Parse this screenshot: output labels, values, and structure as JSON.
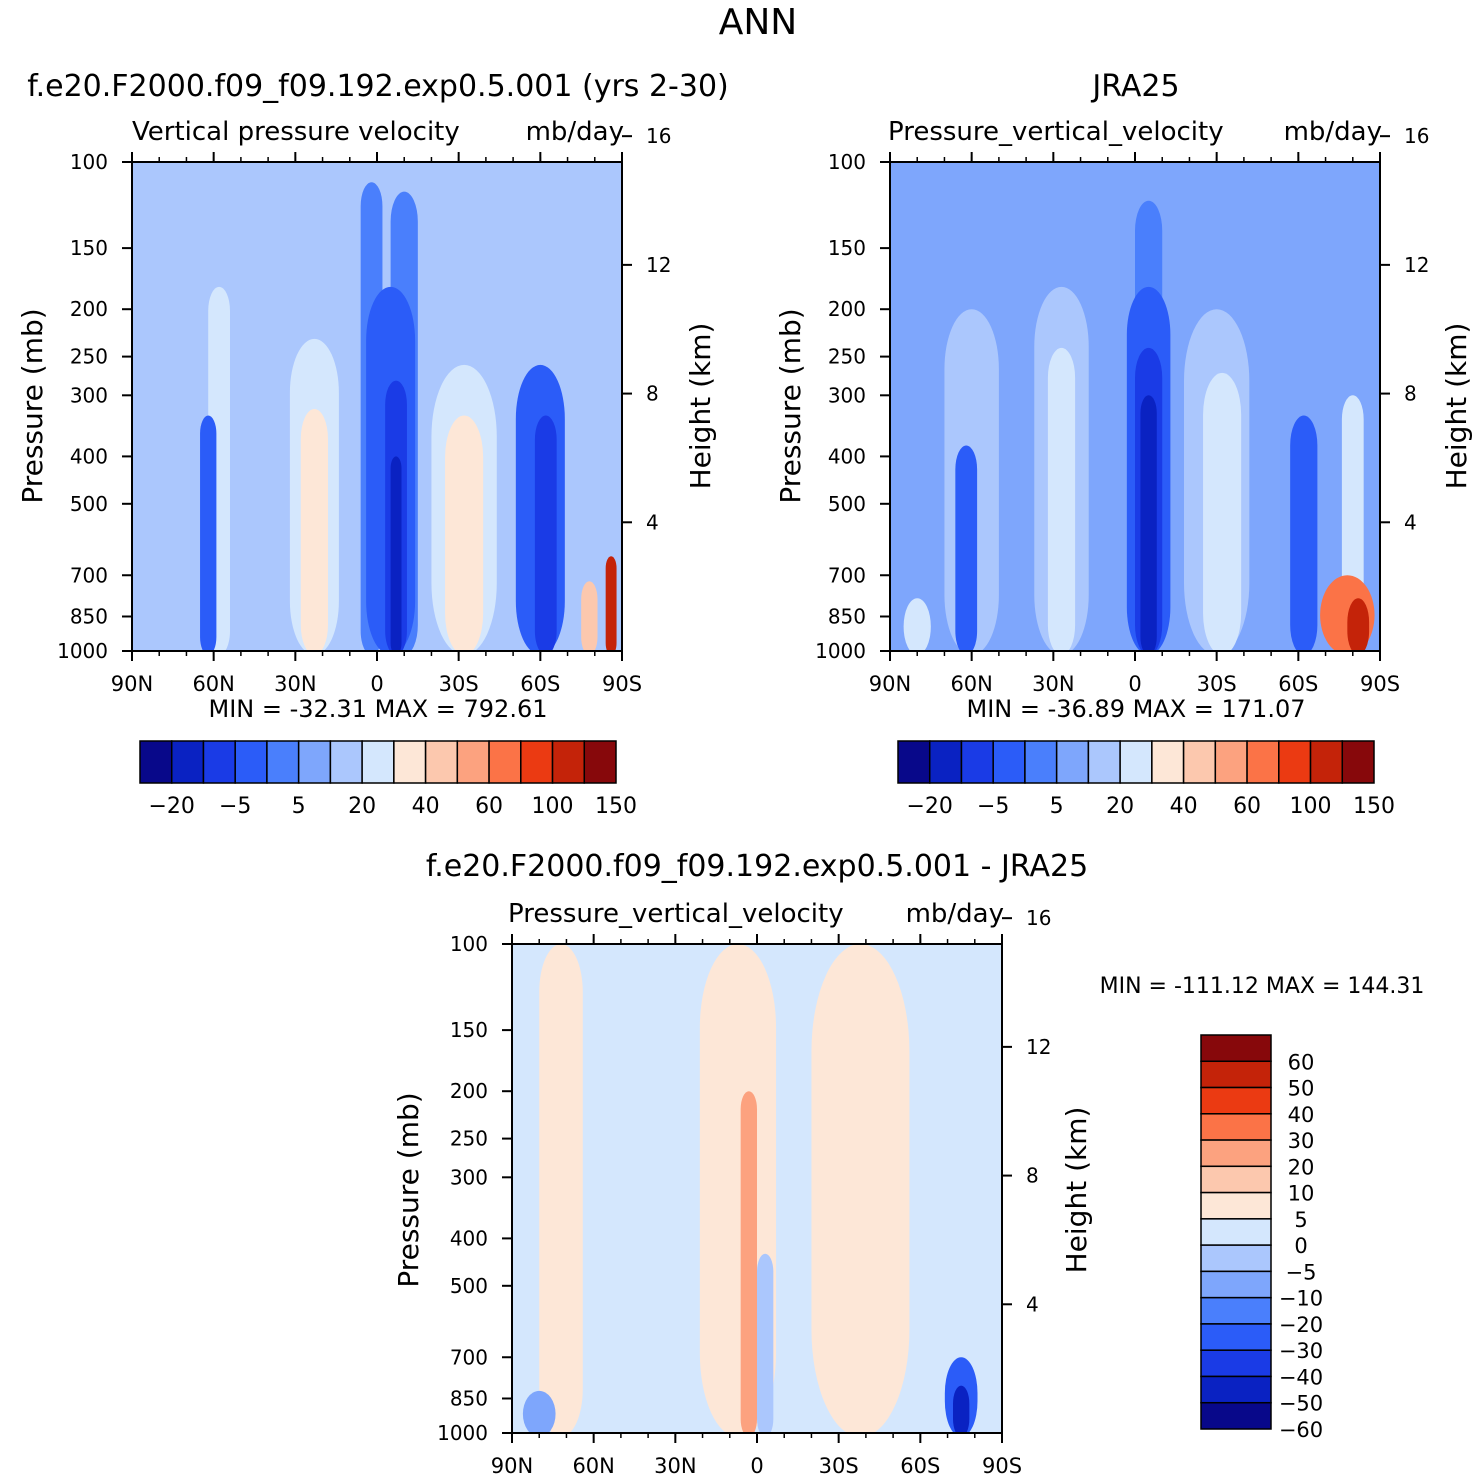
{
  "page_title": "ANN",
  "colors": {
    "seq_main": [
      "#08088a",
      "#0a22c2",
      "#1a3be6",
      "#2b5cf8",
      "#4a7ffc",
      "#7ea6fc",
      "#abc7fd",
      "#d4e7fd",
      "#fde7d7",
      "#fcc8ae",
      "#fca27f",
      "#fb7347",
      "#eb3a12",
      "#c42309",
      "#87080b"
    ],
    "seq_diff": [
      "#08088a",
      "#0a22c2",
      "#1a3be6",
      "#2b5cf8",
      "#4a7ffc",
      "#7ea6fc",
      "#abc7fd",
      "#d4e7fd",
      "#fde7d7",
      "#fcc8ae",
      "#fca27f",
      "#fb7347",
      "#eb3a12",
      "#c42309",
      "#87080b"
    ]
  },
  "chart_data": [
    {
      "id": "model",
      "type": "heatmap",
      "title": "f.e20.F2000.f09_f09.192.exp0.5.001 (yrs 2-30)",
      "subtitle": "Vertical pressure velocity",
      "units": "mb/day",
      "ylabel": "Pressure (mb)",
      "ylabel_right": "Height (km)",
      "x_ticks": [
        "90N",
        "60N",
        "30N",
        "0",
        "30S",
        "60S",
        "90S"
      ],
      "y_ticks": [
        100,
        150,
        200,
        250,
        300,
        400,
        500,
        700,
        850,
        1000
      ],
      "y_ticks_right": [
        16,
        12,
        8,
        4
      ],
      "ylim": [
        1000,
        100
      ],
      "xlim": [
        90,
        -90
      ],
      "stats": "MIN = -32.31   MAX = 792.61",
      "colorbar_labels": [
        "-20",
        "-5",
        "5",
        "20",
        "40",
        "60",
        "100",
        "150"
      ],
      "base_level": 6,
      "features": [
        {
          "lat": 23,
          "level": 7,
          "width": 9,
          "top": 230
        },
        {
          "lat": 23,
          "level": 8,
          "width": 5,
          "top": 320
        },
        {
          "lat": -32,
          "level": 7,
          "width": 12,
          "top": 260
        },
        {
          "lat": -32,
          "level": 8,
          "width": 7,
          "top": 330
        },
        {
          "lat": 58,
          "level": 7,
          "width": 4,
          "top": 180
        },
        {
          "lat": 2,
          "level": 4,
          "width": 4,
          "top": 110
        },
        {
          "lat": -10,
          "level": 4,
          "width": 5,
          "top": 115
        },
        {
          "lat": -5,
          "level": 3,
          "width": 9,
          "top": 180
        },
        {
          "lat": -7,
          "level": 2,
          "width": 4,
          "top": 280
        },
        {
          "lat": -7,
          "level": 1,
          "width": 2,
          "top": 400
        },
        {
          "lat": -60,
          "level": 3,
          "width": 9,
          "top": 260
        },
        {
          "lat": -62,
          "level": 2,
          "width": 4,
          "top": 330
        },
        {
          "lat": 62,
          "level": 3,
          "width": 3,
          "top": 330
        },
        {
          "lat": -78,
          "level": 9,
          "width": 3,
          "top": 720
        },
        {
          "lat": -86,
          "level": 13,
          "width": 2,
          "top": 640
        }
      ]
    },
    {
      "id": "obs",
      "type": "heatmap",
      "title": "JRA25",
      "subtitle": "Pressure_vertical_velocity",
      "units": "mb/day",
      "ylabel": "Pressure (mb)",
      "ylabel_right": "Height (km)",
      "x_ticks": [
        "90N",
        "60N",
        "30N",
        "0",
        "30S",
        "60S",
        "90S"
      ],
      "y_ticks": [
        100,
        150,
        200,
        250,
        300,
        400,
        500,
        700,
        850,
        1000
      ],
      "y_ticks_right": [
        16,
        12,
        8,
        4
      ],
      "ylim": [
        1000,
        100
      ],
      "xlim": [
        90,
        -90
      ],
      "stats": "MIN = -36.89   MAX = 171.07",
      "colorbar_labels": [
        "-20",
        "-5",
        "5",
        "20",
        "40",
        "60",
        "100",
        "150"
      ],
      "base_level": 5,
      "features": [
        {
          "lat": 60,
          "level": 6,
          "width": 10,
          "top": 200
        },
        {
          "lat": 27,
          "level": 6,
          "width": 10,
          "top": 180
        },
        {
          "lat": 27,
          "level": 7,
          "width": 5,
          "top": 240
        },
        {
          "lat": -30,
          "level": 6,
          "width": 12,
          "top": 200
        },
        {
          "lat": -32,
          "level": 7,
          "width": 7,
          "top": 270
        },
        {
          "lat": 80,
          "level": 7,
          "width": 5,
          "top": 780
        },
        {
          "lat": -5,
          "level": 4,
          "width": 5,
          "top": 120
        },
        {
          "lat": -5,
          "level": 3,
          "width": 8,
          "top": 180
        },
        {
          "lat": -5,
          "level": 2,
          "width": 5,
          "top": 240
        },
        {
          "lat": -5,
          "level": 1,
          "width": 3,
          "top": 300
        },
        {
          "lat": 62,
          "level": 3,
          "width": 4,
          "top": 380
        },
        {
          "lat": -62,
          "level": 3,
          "width": 5,
          "top": 330
        },
        {
          "lat": -80,
          "level": 7,
          "width": 4,
          "top": 300
        },
        {
          "lat": -78,
          "level": 11,
          "width": 10,
          "top": 700
        },
        {
          "lat": -82,
          "level": 13,
          "width": 4,
          "top": 780
        }
      ]
    },
    {
      "id": "diff",
      "type": "heatmap",
      "title": "f.e20.F2000.f09_f09.192.exp0.5.001 - JRA25",
      "subtitle": "Pressure_vertical_velocity",
      "units": "mb/day",
      "ylabel": "Pressure (mb)",
      "ylabel_right": "Height (km)",
      "x_ticks": [
        "90N",
        "60N",
        "30N",
        "0",
        "30S",
        "60S",
        "90S"
      ],
      "y_ticks": [
        100,
        150,
        200,
        250,
        300,
        400,
        500,
        700,
        850,
        1000
      ],
      "y_ticks_right": [
        16,
        12,
        8,
        4
      ],
      "ylim": [
        1000,
        100
      ],
      "xlim": [
        90,
        -90
      ],
      "stats": "MIN = -111.12   MAX = 144.31",
      "colorbar_labels": [
        "60",
        "50",
        "40",
        "30",
        "20",
        "10",
        "5",
        "0",
        "-5",
        "-10",
        "-20",
        "-30",
        "-40",
        "-50",
        "-60"
      ],
      "base_level": 7,
      "features": [
        {
          "lat": 72,
          "level": 8,
          "width": 8,
          "top": 100
        },
        {
          "lat": 7,
          "level": 8,
          "width": 14,
          "top": 100
        },
        {
          "lat": -38,
          "level": 8,
          "width": 18,
          "top": 100
        },
        {
          "lat": 3,
          "level": 10,
          "width": 3,
          "top": 200
        },
        {
          "lat": -3,
          "level": 6,
          "width": 3,
          "top": 430
        },
        {
          "lat": -75,
          "level": 3,
          "width": 6,
          "top": 700
        },
        {
          "lat": -75,
          "level": 1,
          "width": 3,
          "top": 800
        },
        {
          "lat": 80,
          "level": 5,
          "width": 6,
          "top": 820
        }
      ]
    }
  ]
}
